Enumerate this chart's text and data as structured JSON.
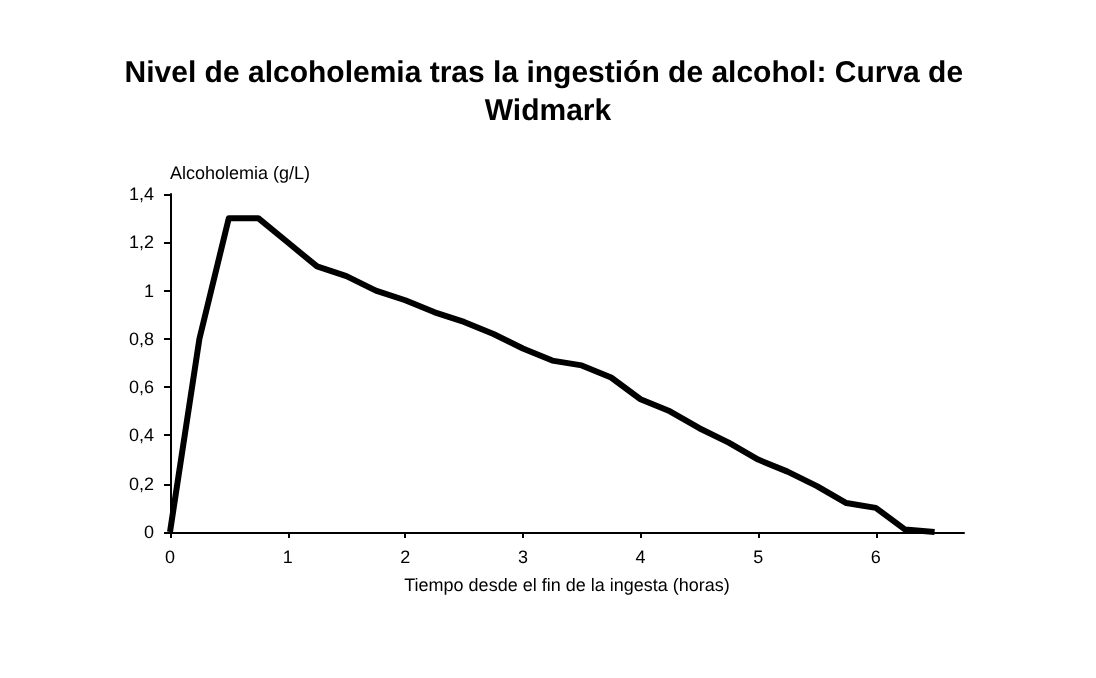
{
  "chart_data": {
    "type": "line",
    "title": "Nivel de alcoholemia tras la ingestión de alcohol: Curva de Widmark",
    "xlabel": "Tiempo desde el fin de la ingesta (horas)",
    "ylabel": "Alcoholemia (g/L)",
    "x": [
      0,
      0.25,
      0.5,
      0.75,
      1,
      1.25,
      1.5,
      1.75,
      2,
      2.25,
      2.5,
      2.75,
      3,
      3.25,
      3.5,
      3.75,
      4,
      4.25,
      4.5,
      4.75,
      5,
      5.25,
      5.5,
      5.75,
      6,
      6.25,
      6.5
    ],
    "series": [
      {
        "color": "#000000",
        "values": [
          0,
          0.8,
          1.3,
          1.3,
          1.2,
          1.1,
          1.06,
          1.0,
          0.96,
          0.91,
          0.87,
          0.82,
          0.76,
          0.71,
          0.69,
          0.64,
          0.55,
          0.5,
          0.43,
          0.37,
          0.3,
          0.25,
          0.19,
          0.12,
          0.1,
          0.01,
          0
        ]
      }
    ],
    "xlim": [
      0,
      6.75
    ],
    "xticks": [
      0,
      1,
      2,
      3,
      4,
      5,
      6
    ],
    "ylim": [
      0,
      1.4
    ],
    "yticks": [
      0,
      {
        "value": 0.2,
        "label": "0,2"
      },
      {
        "value": 0.4,
        "label": "0,4"
      },
      {
        "value": 0.6,
        "label": "0,6"
      },
      {
        "value": 0.8,
        "label": "0,8"
      },
      1,
      {
        "value": 1.2,
        "label": "1,2"
      },
      {
        "value": 1.4,
        "label": "1,4"
      }
    ],
    "grid": false,
    "marker": "none",
    "line_style": "solid"
  }
}
